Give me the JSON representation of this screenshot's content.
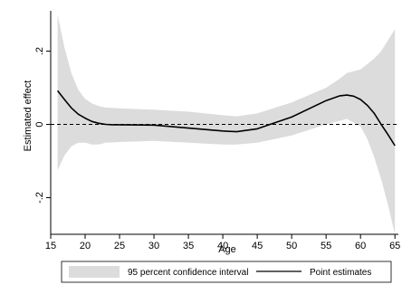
{
  "chart_data": {
    "type": "line",
    "title": "",
    "xlabel": "Age",
    "ylabel": "Estimated effect",
    "xlim": [
      15,
      65.5
    ],
    "ylim": [
      -0.3,
      0.31
    ],
    "x_ticks": [
      15,
      20,
      25,
      30,
      35,
      40,
      45,
      50,
      55,
      60,
      65
    ],
    "x_tick_labels": [
      "15",
      "20",
      "25",
      "30",
      "35",
      "40",
      "45",
      "50",
      "55",
      "60",
      "65"
    ],
    "y_ticks": [
      -0.2,
      0,
      0.2
    ],
    "y_tick_labels": [
      "-.2",
      "0",
      ".2"
    ],
    "grid": false,
    "reference_line": {
      "y": 0,
      "style": "dashed"
    },
    "legend_position": "bottom",
    "colors": {
      "band": "#dcdcdc",
      "line": "#000000",
      "reference": "#000000"
    },
    "series": [
      {
        "name": "95 percent confidence interval",
        "type": "area-band",
        "x": [
          16,
          17,
          18,
          19,
          20,
          21,
          22,
          23,
          25,
          30,
          35,
          40,
          42,
          45,
          50,
          55,
          57,
          58,
          60,
          61,
          62,
          63,
          64,
          65
        ],
        "lower": [
          -0.125,
          -0.085,
          -0.06,
          -0.05,
          -0.05,
          -0.055,
          -0.055,
          -0.05,
          -0.048,
          -0.045,
          -0.05,
          -0.055,
          -0.055,
          -0.05,
          -0.03,
          0.0,
          0.01,
          0.015,
          -0.005,
          -0.04,
          -0.09,
          -0.15,
          -0.22,
          -0.3
        ],
        "upper": [
          0.3,
          0.21,
          0.14,
          0.095,
          0.07,
          0.057,
          0.05,
          0.046,
          0.044,
          0.04,
          0.035,
          0.025,
          0.022,
          0.03,
          0.06,
          0.1,
          0.125,
          0.14,
          0.15,
          0.165,
          0.18,
          0.2,
          0.23,
          0.26
        ]
      },
      {
        "name": "Point estimates",
        "type": "line",
        "x": [
          16,
          17,
          18,
          19,
          20,
          21,
          22,
          23,
          24,
          25,
          30,
          35,
          40,
          42,
          45,
          50,
          55,
          57,
          58,
          59,
          60,
          61,
          62,
          63,
          64,
          65
        ],
        "y": [
          0.092,
          0.068,
          0.045,
          0.028,
          0.017,
          0.008,
          0.003,
          0.0,
          -0.001,
          -0.001,
          -0.002,
          -0.01,
          -0.018,
          -0.02,
          -0.012,
          0.02,
          0.065,
          0.078,
          0.08,
          0.077,
          0.068,
          0.052,
          0.03,
          0.0,
          -0.028,
          -0.058
        ]
      }
    ]
  }
}
